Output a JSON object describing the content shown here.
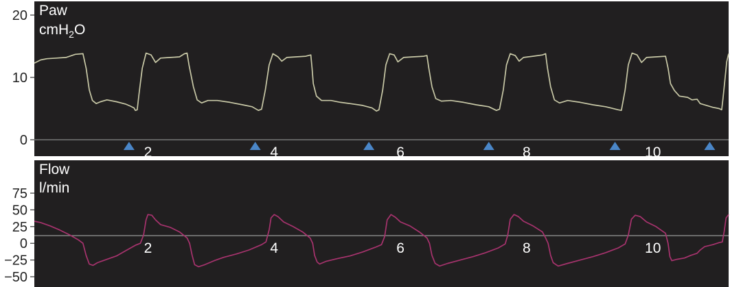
{
  "chart_data": [
    {
      "type": "line",
      "title": "",
      "ylabel_name": "Paw",
      "ylabel_unit_base": "cmH",
      "ylabel_unit_sub": "2",
      "ylabel_unit_tail": "O",
      "xlabel": "",
      "ylim": [
        0,
        20
      ],
      "yticks": [
        "20",
        "10",
        "0"
      ],
      "xlim": [
        0.2,
        11.2
      ],
      "xticks": [
        "2",
        "4",
        "6",
        "8",
        "10"
      ],
      "xtick_values": [
        2,
        4,
        6,
        8,
        10
      ],
      "trigger_markers_x": [
        1.7,
        3.7,
        5.5,
        7.4,
        9.4,
        10.9
      ],
      "grid": false,
      "series": [
        {
          "color": "#c9c9a7",
          "points": [
            [
              0.2,
              12.3
            ],
            [
              0.3,
              12.8
            ],
            [
              0.4,
              13.0
            ],
            [
              0.55,
              13.1
            ],
            [
              0.7,
              13.2
            ],
            [
              0.85,
              13.7
            ],
            [
              0.97,
              13.8
            ],
            [
              1.02,
              11.5
            ],
            [
              1.07,
              8.0
            ],
            [
              1.12,
              6.3
            ],
            [
              1.18,
              5.8
            ],
            [
              1.25,
              6.1
            ],
            [
              1.35,
              6.4
            ],
            [
              1.5,
              6.1
            ],
            [
              1.65,
              5.7
            ],
            [
              1.72,
              5.4
            ],
            [
              1.78,
              5.1
            ],
            [
              1.8,
              4.7
            ],
            [
              1.83,
              4.8
            ],
            [
              1.86,
              7.5
            ],
            [
              1.91,
              11.5
            ],
            [
              1.97,
              13.9
            ],
            [
              2.05,
              13.6
            ],
            [
              2.12,
              12.4
            ],
            [
              2.2,
              13.1
            ],
            [
              2.35,
              13.2
            ],
            [
              2.5,
              13.3
            ],
            [
              2.58,
              13.8
            ],
            [
              2.62,
              13.9
            ],
            [
              2.65,
              12.0
            ],
            [
              2.72,
              8.5
            ],
            [
              2.78,
              6.4
            ],
            [
              2.85,
              5.9
            ],
            [
              2.95,
              6.3
            ],
            [
              3.1,
              6.3
            ],
            [
              3.3,
              6.0
            ],
            [
              3.5,
              5.6
            ],
            [
              3.65,
              5.3
            ],
            [
              3.75,
              4.7
            ],
            [
              3.8,
              4.9
            ],
            [
              3.86,
              8.0
            ],
            [
              3.92,
              12.0
            ],
            [
              3.98,
              13.8
            ],
            [
              4.06,
              13.3
            ],
            [
              4.12,
              12.6
            ],
            [
              4.2,
              13.2
            ],
            [
              4.35,
              13.3
            ],
            [
              4.5,
              13.4
            ],
            [
              4.58,
              13.6
            ],
            [
              4.6,
              11.5
            ],
            [
              4.62,
              9.0
            ],
            [
              4.67,
              7.0
            ],
            [
              4.75,
              6.3
            ],
            [
              4.9,
              6.3
            ],
            [
              5.05,
              6.0
            ],
            [
              5.2,
              5.8
            ],
            [
              5.4,
              5.5
            ],
            [
              5.55,
              5.1
            ],
            [
              5.62,
              4.6
            ],
            [
              5.66,
              4.8
            ],
            [
              5.72,
              8.0
            ],
            [
              5.77,
              12.0
            ],
            [
              5.83,
              13.8
            ],
            [
              5.9,
              13.6
            ],
            [
              5.96,
              12.5
            ],
            [
              6.05,
              13.2
            ],
            [
              6.2,
              13.3
            ],
            [
              6.37,
              13.4
            ],
            [
              6.42,
              13.5
            ],
            [
              6.45,
              11.5
            ],
            [
              6.5,
              8.5
            ],
            [
              6.56,
              6.6
            ],
            [
              6.65,
              6.2
            ],
            [
              6.8,
              6.3
            ],
            [
              7.0,
              6.0
            ],
            [
              7.2,
              5.6
            ],
            [
              7.4,
              5.3
            ],
            [
              7.52,
              4.7
            ],
            [
              7.57,
              4.9
            ],
            [
              7.63,
              8.0
            ],
            [
              7.68,
              12.0
            ],
            [
              7.74,
              13.8
            ],
            [
              7.82,
              13.5
            ],
            [
              7.88,
              12.6
            ],
            [
              7.95,
              13.2
            ],
            [
              8.1,
              13.4
            ],
            [
              8.25,
              13.6
            ],
            [
              8.3,
              13.8
            ],
            [
              8.33,
              11.5
            ],
            [
              8.38,
              8.5
            ],
            [
              8.44,
              6.4
            ],
            [
              8.52,
              5.9
            ],
            [
              8.65,
              6.3
            ],
            [
              8.85,
              6.0
            ],
            [
              9.05,
              5.6
            ],
            [
              9.25,
              5.3
            ],
            [
              9.45,
              4.8
            ],
            [
              9.5,
              4.7
            ],
            [
              9.56,
              8.0
            ],
            [
              9.61,
              12.0
            ],
            [
              9.67,
              13.9
            ],
            [
              9.75,
              13.6
            ],
            [
              9.82,
              12.4
            ],
            [
              9.9,
              13.2
            ],
            [
              10.05,
              13.3
            ],
            [
              10.2,
              13.4
            ],
            [
              10.24,
              11.5
            ],
            [
              10.28,
              9.0
            ],
            [
              10.34,
              7.9
            ],
            [
              10.42,
              7.0
            ],
            [
              10.55,
              6.8
            ],
            [
              10.62,
              6.4
            ],
            [
              10.7,
              6.5
            ],
            [
              10.75,
              5.8
            ],
            [
              10.85,
              5.5
            ],
            [
              10.95,
              5.2
            ],
            [
              11.05,
              5.0
            ],
            [
              11.09,
              4.8
            ],
            [
              11.11,
              6.5
            ],
            [
              11.14,
              9.5
            ],
            [
              11.17,
              12.5
            ],
            [
              11.2,
              13.8
            ]
          ]
        }
      ]
    },
    {
      "type": "line",
      "title": "",
      "ylabel_name": "Flow",
      "ylabel_unit": "l/min",
      "xlabel": "",
      "ylim": [
        -55,
        80
      ],
      "yticks": [
        "75",
        "50",
        "25",
        "0",
        "−25",
        "−50"
      ],
      "ytick_values": [
        75,
        50,
        25,
        0,
        -25,
        -50
      ],
      "xlim": [
        0.2,
        11.2
      ],
      "xticks": [
        "2",
        "4",
        "6",
        "8",
        "10"
      ],
      "xtick_values": [
        2,
        4,
        6,
        8,
        10
      ],
      "zero_line": true,
      "grid": false,
      "series": [
        {
          "color": "#a8336e",
          "points": [
            [
              0.2,
              33
            ],
            [
              0.3,
              31
            ],
            [
              0.45,
              26
            ],
            [
              0.6,
              20
            ],
            [
              0.75,
              13
            ],
            [
              0.9,
              5
            ],
            [
              0.97,
              0
            ],
            [
              1.02,
              -18
            ],
            [
              1.07,
              -31
            ],
            [
              1.13,
              -33
            ],
            [
              1.2,
              -29
            ],
            [
              1.35,
              -24
            ],
            [
              1.5,
              -19
            ],
            [
              1.65,
              -11
            ],
            [
              1.8,
              -3
            ],
            [
              1.88,
              0
            ],
            [
              1.93,
              12
            ],
            [
              1.97,
              35
            ],
            [
              2.0,
              43
            ],
            [
              2.06,
              42
            ],
            [
              2.12,
              35
            ],
            [
              2.2,
              28
            ],
            [
              2.35,
              24
            ],
            [
              2.5,
              17
            ],
            [
              2.62,
              8
            ],
            [
              2.66,
              0
            ],
            [
              2.7,
              -18
            ],
            [
              2.74,
              -32
            ],
            [
              2.8,
              -35
            ],
            [
              2.9,
              -32
            ],
            [
              3.05,
              -26
            ],
            [
              3.2,
              -21
            ],
            [
              3.4,
              -16
            ],
            [
              3.6,
              -10
            ],
            [
              3.8,
              -2
            ],
            [
              3.87,
              2
            ],
            [
              3.92,
              20
            ],
            [
              3.95,
              38
            ],
            [
              4.0,
              43
            ],
            [
              4.06,
              40
            ],
            [
              4.15,
              32
            ],
            [
              4.3,
              25
            ],
            [
              4.45,
              17
            ],
            [
              4.57,
              8
            ],
            [
              4.61,
              0
            ],
            [
              4.64,
              -18
            ],
            [
              4.68,
              -28
            ],
            [
              4.72,
              -31
            ],
            [
              4.82,
              -27
            ],
            [
              5.0,
              -23
            ],
            [
              5.2,
              -19
            ],
            [
              5.4,
              -13
            ],
            [
              5.6,
              -6
            ],
            [
              5.7,
              -2
            ],
            [
              5.75,
              10
            ],
            [
              5.79,
              35
            ],
            [
              5.85,
              43
            ],
            [
              5.92,
              39
            ],
            [
              6.0,
              32
            ],
            [
              6.15,
              26
            ],
            [
              6.3,
              17
            ],
            [
              6.42,
              8
            ],
            [
              6.46,
              0
            ],
            [
              6.5,
              -18
            ],
            [
              6.55,
              -30
            ],
            [
              6.62,
              -34
            ],
            [
              6.75,
              -30
            ],
            [
              6.95,
              -25
            ],
            [
              7.15,
              -20
            ],
            [
              7.35,
              -14
            ],
            [
              7.55,
              -7
            ],
            [
              7.66,
              -1
            ],
            [
              7.7,
              12
            ],
            [
              7.74,
              36
            ],
            [
              7.8,
              43
            ],
            [
              7.87,
              40
            ],
            [
              7.95,
              33
            ],
            [
              8.1,
              26
            ],
            [
              8.25,
              17
            ],
            [
              8.3,
              8
            ],
            [
              8.34,
              0
            ],
            [
              8.38,
              -18
            ],
            [
              8.42,
              -29
            ],
            [
              8.5,
              -34
            ],
            [
              8.65,
              -30
            ],
            [
              8.85,
              -25
            ],
            [
              9.05,
              -20
            ],
            [
              9.25,
              -14
            ],
            [
              9.45,
              -7
            ],
            [
              9.56,
              -1
            ],
            [
              9.61,
              12
            ],
            [
              9.66,
              36
            ],
            [
              9.72,
              42
            ],
            [
              9.8,
              40
            ],
            [
              9.9,
              32
            ],
            [
              10.05,
              25
            ],
            [
              10.2,
              15
            ],
            [
              10.24,
              0
            ],
            [
              10.27,
              -20
            ],
            [
              10.3,
              -26
            ],
            [
              10.38,
              -24
            ],
            [
              10.5,
              -22
            ],
            [
              10.6,
              -18
            ],
            [
              10.7,
              -15
            ],
            [
              10.75,
              -10
            ],
            [
              10.82,
              -5
            ],
            [
              10.95,
              -2
            ],
            [
              11.05,
              1
            ],
            [
              11.1,
              2
            ],
            [
              11.13,
              18
            ],
            [
              11.16,
              38
            ],
            [
              11.2,
              43
            ]
          ]
        }
      ]
    }
  ]
}
